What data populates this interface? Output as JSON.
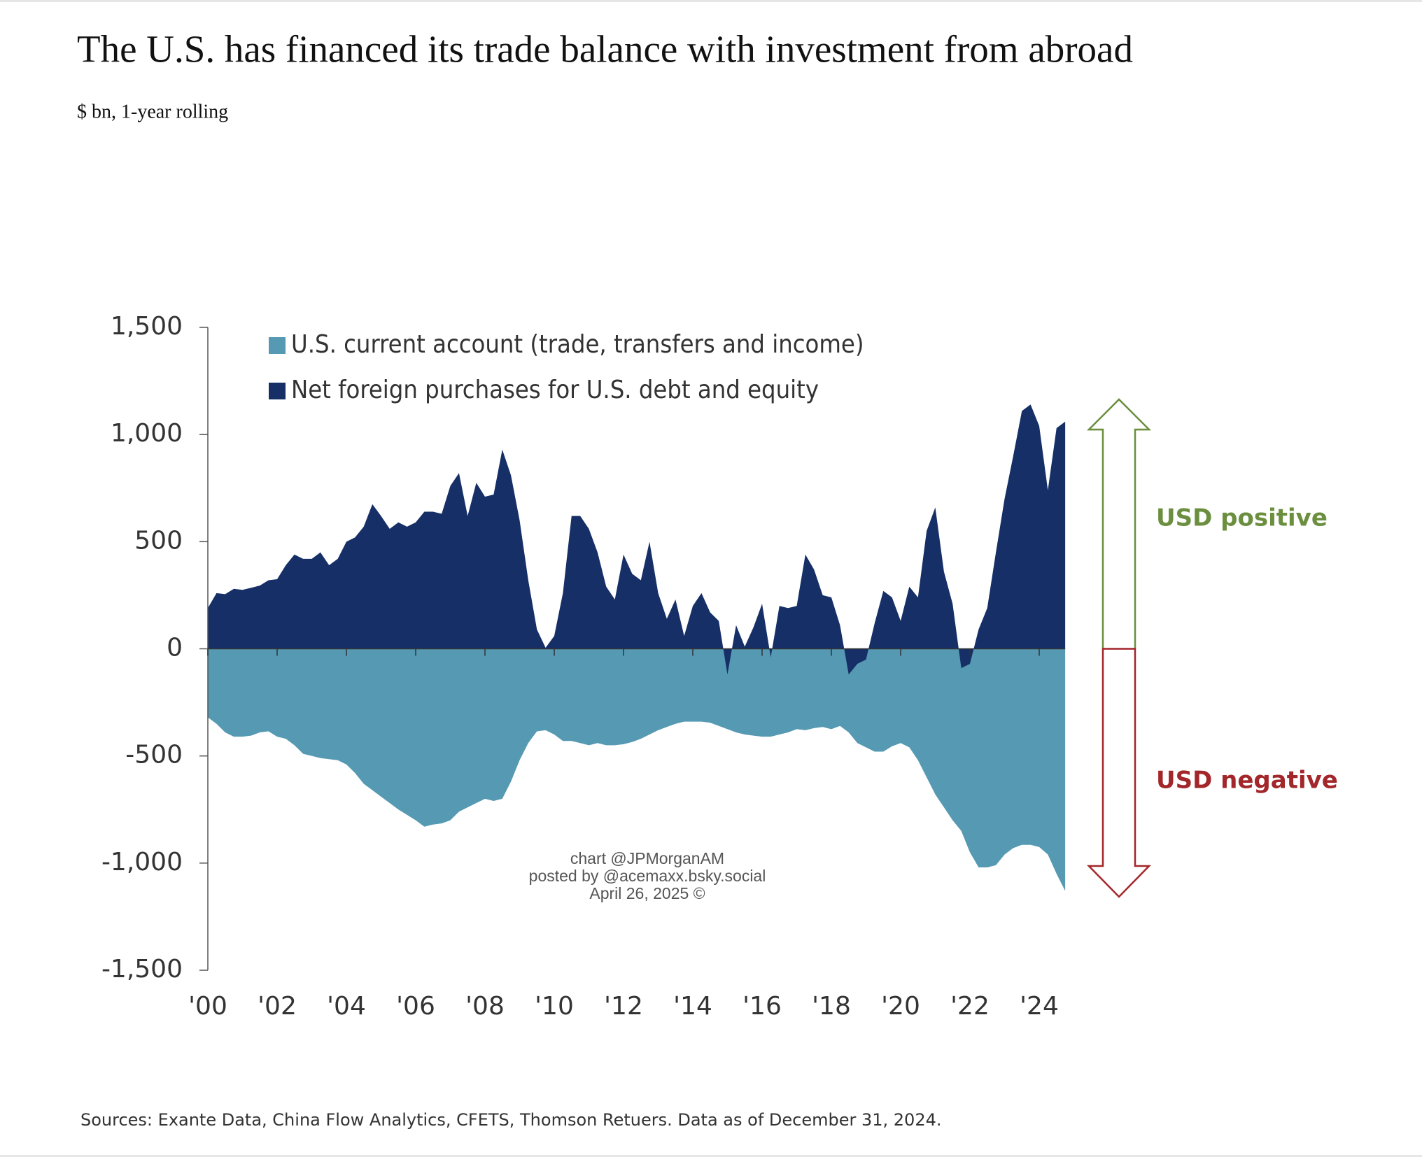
{
  "chart_data": {
    "type": "area",
    "title": "The U.S. has financed its trade balance with investment from abroad",
    "subtitle": "$ bn, 1-year rolling",
    "x": [
      2000,
      2000.25,
      2000.5,
      2000.75,
      2001,
      2001.25,
      2001.5,
      2001.75,
      2002,
      2002.25,
      2002.5,
      2002.75,
      2003,
      2003.25,
      2003.5,
      2003.75,
      2004,
      2004.25,
      2004.5,
      2004.75,
      2005,
      2005.25,
      2005.5,
      2005.75,
      2006,
      2006.25,
      2006.5,
      2006.75,
      2007,
      2007.25,
      2007.5,
      2007.75,
      2008,
      2008.25,
      2008.5,
      2008.75,
      2009,
      2009.25,
      2009.5,
      2009.75,
      2010,
      2010.25,
      2010.5,
      2010.75,
      2011,
      2011.25,
      2011.5,
      2011.75,
      2012,
      2012.25,
      2012.5,
      2012.75,
      2013,
      2013.25,
      2013.5,
      2013.75,
      2014,
      2014.25,
      2014.5,
      2014.75,
      2015,
      2015.25,
      2015.5,
      2015.75,
      2016,
      2016.25,
      2016.5,
      2016.75,
      2017,
      2017.25,
      2017.5,
      2017.75,
      2018,
      2018.25,
      2018.5,
      2018.75,
      2019,
      2019.25,
      2019.5,
      2019.75,
      2020,
      2020.25,
      2020.5,
      2020.75,
      2021,
      2021.25,
      2021.5,
      2021.75,
      2022,
      2022.25,
      2022.5,
      2022.75,
      2023,
      2023.25,
      2023.5,
      2023.75,
      2024,
      2024.25,
      2024.5,
      2024.75
    ],
    "series": [
      {
        "name": "U.S. current account (trade, transfers and income)",
        "color": "#5699b3",
        "values": [
          -320,
          -350,
          -390,
          -410,
          -410,
          -405,
          -390,
          -385,
          -410,
          -420,
          -450,
          -490,
          -500,
          -510,
          -515,
          -520,
          -540,
          -580,
          -630,
          -660,
          -690,
          -720,
          -750,
          -775,
          -800,
          -830,
          -820,
          -815,
          -800,
          -760,
          -740,
          -720,
          -700,
          -710,
          -700,
          -620,
          -520,
          -440,
          -385,
          -380,
          -400,
          -430,
          -430,
          -440,
          -450,
          -440,
          -450,
          -450,
          -445,
          -435,
          -420,
          -400,
          -380,
          -365,
          -350,
          -340,
          -340,
          -340,
          -345,
          -360,
          -375,
          -390,
          -400,
          -405,
          -410,
          -410,
          -400,
          -390,
          -375,
          -380,
          -370,
          -365,
          -375,
          -360,
          -390,
          -440,
          -460,
          -480,
          -480,
          -455,
          -440,
          -460,
          -520,
          -600,
          -680,
          -740,
          -800,
          -850,
          -950,
          -1020,
          -1020,
          -1010,
          -960,
          -930,
          -915,
          -915,
          -925,
          -960,
          -1050,
          -1130
        ]
      },
      {
        "name": "Net foreign purchases for U.S. debt and equity",
        "color": "#162f66",
        "values": [
          190,
          260,
          255,
          280,
          275,
          285,
          295,
          320,
          325,
          390,
          440,
          420,
          420,
          450,
          390,
          420,
          500,
          520,
          570,
          675,
          620,
          560,
          590,
          570,
          590,
          640,
          640,
          630,
          760,
          820,
          620,
          775,
          710,
          720,
          930,
          810,
          600,
          320,
          90,
          5,
          60,
          260,
          620,
          620,
          560,
          450,
          290,
          230,
          440,
          350,
          320,
          500,
          260,
          140,
          230,
          60,
          200,
          260,
          170,
          130,
          -120,
          110,
          10,
          100,
          210,
          -40,
          200,
          190,
          200,
          440,
          370,
          250,
          240,
          110,
          -120,
          -70,
          -50,
          120,
          270,
          240,
          130,
          290,
          240,
          550,
          660,
          360,
          210,
          -90,
          -70,
          90,
          190,
          450,
          700,
          900,
          1110,
          1140,
          1040,
          740,
          1030,
          1060
        ]
      }
    ],
    "xlim": [
      2000,
      2024.75
    ],
    "xticks": [
      {
        "value": 2000,
        "label": "'00"
      },
      {
        "value": 2002,
        "label": "'02"
      },
      {
        "value": 2004,
        "label": "'04"
      },
      {
        "value": 2006,
        "label": "'06"
      },
      {
        "value": 2008,
        "label": "'08"
      },
      {
        "value": 2010,
        "label": "'10"
      },
      {
        "value": 2012,
        "label": "'12"
      },
      {
        "value": 2014,
        "label": "'14"
      },
      {
        "value": 2016,
        "label": "'16"
      },
      {
        "value": 2018,
        "label": "'18"
      },
      {
        "value": 2020,
        "label": "'20"
      },
      {
        "value": 2022,
        "label": "'22"
      },
      {
        "value": 2024,
        "label": "'24"
      }
    ],
    "ylim": [
      -1500,
      1500
    ],
    "yticks": [
      {
        "value": 1500,
        "label": "1,500"
      },
      {
        "value": 1000,
        "label": "1,000"
      },
      500,
      0,
      -500,
      {
        "value": -1000,
        "label": "-1,000"
      },
      {
        "value": -1500,
        "label": "-1,500"
      }
    ],
    "annotations": [
      "USD positive",
      "USD negative"
    ],
    "watermark": [
      "chart @JPMorganAM",
      "posted by @acemaxx.bsky.social",
      "April 26, 2025 ©"
    ],
    "source": "Sources: Exante Data, China Flow Analytics, CFETS, Thomson Retuers. Data as of December 31, 2024."
  }
}
